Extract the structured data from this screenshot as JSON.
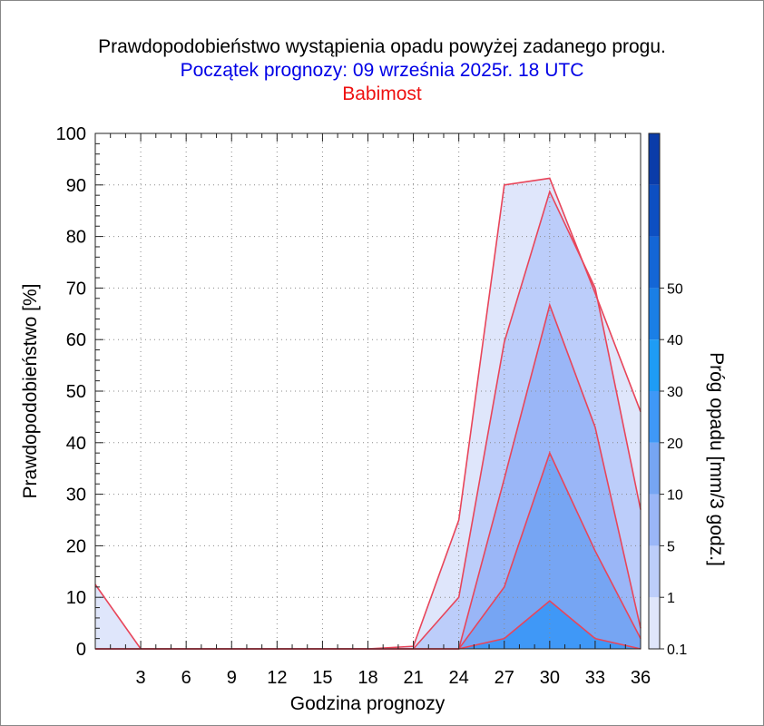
{
  "title": "Prawdopodobieństwo wystąpienia opadu powyżej zadanego progu.",
  "subtitle": "Początek prognozy: 09 września 2025r. 18 UTC",
  "location": "Babimost",
  "colors": {
    "subtitle": "#0000e6",
    "location": "#ee1111",
    "outline": "#e8455a",
    "bands": [
      "#dfe6fb",
      "#bccdfa",
      "#9ab6f7",
      "#76a5f3",
      "#3f98f7",
      "#1e9cf5",
      "#1a7fe6",
      "#1466d6",
      "#0d4fc2",
      "#0a3ca9"
    ]
  },
  "chart_data": {
    "type": "area",
    "title": "Prawdopodobieństwo wystąpienia opadu powyżej zadanego progu.",
    "xlabel": "Godzina prognozy",
    "ylabel": "Prawdopodobieństwo [%]",
    "colorbar_label": "Próg opadu [mm/3 godz.]",
    "xlim": [
      0,
      36
    ],
    "ylim": [
      0,
      100
    ],
    "xticks": [
      3,
      6,
      9,
      12,
      15,
      18,
      21,
      24,
      27,
      30,
      33,
      36
    ],
    "yticks": [
      0,
      10,
      20,
      30,
      40,
      50,
      60,
      70,
      80,
      90,
      100
    ],
    "colorbar_ticks": [
      "0.1",
      "1",
      "5",
      "10",
      "20",
      "30",
      "40",
      "50"
    ],
    "x": [
      0,
      3,
      6,
      9,
      12,
      15,
      18,
      21,
      24,
      27,
      30,
      33,
      36
    ],
    "series": [
      {
        "threshold": "0.1",
        "values": [
          12.5,
          0,
          0,
          0,
          0,
          0,
          0,
          0.5,
          25,
          90,
          91.3,
          69,
          46
        ]
      },
      {
        "threshold": "1",
        "values": [
          0,
          0,
          0,
          0,
          0,
          0,
          0,
          0,
          10,
          59.5,
          88.7,
          70,
          27
        ]
      },
      {
        "threshold": "5",
        "values": [
          0,
          0,
          0,
          0,
          0,
          0,
          0,
          0,
          0,
          33,
          66.7,
          43,
          4
        ]
      },
      {
        "threshold": "10",
        "values": [
          0,
          0,
          0,
          0,
          0,
          0,
          0,
          0,
          0,
          12,
          38,
          19,
          2
        ]
      },
      {
        "threshold": "20",
        "values": [
          0,
          0,
          0,
          0,
          0,
          0,
          0,
          0,
          0,
          2,
          9.3,
          2,
          0
        ]
      }
    ]
  }
}
